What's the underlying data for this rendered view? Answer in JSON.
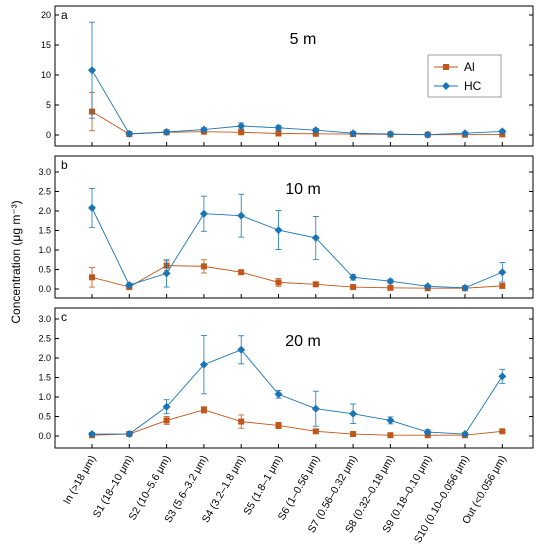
{
  "chart_data": {
    "type": "line",
    "ylabel": "Concentration (μg m⁻³)",
    "categories": [
      "In (>18 μm)",
      "S1 (18–10 μm)",
      "S2 (10–5.6 μm)",
      "S3 (5.6–3.2 μm)",
      "S4 (3.2–1.8 μm)",
      "S5 (1.8–1 μm)",
      "S6 (1–0.56 μm)",
      "S7 (0.56–0.32 μm)",
      "S8 (0.32–0.18 μm)",
      "S9 (0.18–0.10 μm)",
      "S10 (0.10–0.056 μm)",
      "Out (<0.056 μm)"
    ],
    "legend": [
      {
        "name": "Al",
        "color": "#c0561a",
        "marker": "square"
      },
      {
        "name": "HC",
        "color": "#1b75b5",
        "marker": "diamond"
      }
    ],
    "panels": [
      {
        "letter": "a",
        "title": "5 m",
        "ylim": [
          0,
          20
        ],
        "yticks": [
          0,
          5,
          10,
          15,
          20
        ],
        "ytick_labels": [
          "0",
          "5",
          "10",
          "15",
          "20"
        ],
        "series": [
          {
            "name": "Al",
            "values": [
              3.9,
              0.15,
              0.45,
              0.55,
              0.45,
              0.25,
              0.2,
              0.15,
              0.1,
              0.05,
              0.05,
              0.1
            ],
            "errors": [
              3.2,
              0.05,
              0.15,
              0.2,
              0.15,
              0.1,
              0.1,
              0.05,
              0.05,
              0.02,
              0.02,
              0.05
            ]
          },
          {
            "name": "HC",
            "values": [
              10.8,
              0.2,
              0.5,
              0.9,
              1.5,
              1.2,
              0.8,
              0.3,
              0.15,
              0.05,
              0.3,
              0.6
            ],
            "errors": [
              8.0,
              0.1,
              0.2,
              0.3,
              0.5,
              0.4,
              0.3,
              0.1,
              0.05,
              0.02,
              0.1,
              0.2
            ]
          }
        ]
      },
      {
        "letter": "b",
        "title": "10 m",
        "ylim": [
          0,
          3.0
        ],
        "yticks": [
          0,
          0.5,
          1.0,
          1.5,
          2.0,
          2.5,
          3.0
        ],
        "ytick_labels": [
          "0.0",
          "0.5",
          "1.0",
          "1.5",
          "2.0",
          "2.5",
          "3.0"
        ],
        "series": [
          {
            "name": "Al",
            "values": [
              0.3,
              0.05,
              0.6,
              0.58,
              0.43,
              0.17,
              0.12,
              0.05,
              0.03,
              0.02,
              0.02,
              0.08
            ],
            "errors": [
              0.25,
              0.02,
              0.12,
              0.17,
              0.06,
              0.1,
              0.04,
              0.02,
              0.01,
              0.01,
              0.01,
              0.06
            ]
          },
          {
            "name": "HC",
            "values": [
              2.08,
              0.1,
              0.4,
              1.93,
              1.88,
              1.51,
              1.31,
              0.3,
              0.2,
              0.07,
              0.03,
              0.43
            ],
            "errors": [
              0.5,
              0.05,
              0.35,
              0.45,
              0.55,
              0.5,
              0.55,
              0.07,
              0.05,
              0.03,
              0.02,
              0.25
            ]
          }
        ]
      },
      {
        "letter": "c",
        "title": "20 m",
        "ylim": [
          0,
          3.0
        ],
        "yticks": [
          0,
          0.5,
          1.0,
          1.5,
          2.0,
          2.5,
          3.0
        ],
        "ytick_labels": [
          "0.0",
          "0.5",
          "1.0",
          "1.5",
          "2.0",
          "2.5",
          "3.0"
        ],
        "series": [
          {
            "name": "Al",
            "values": [
              0.02,
              0.05,
              0.4,
              0.67,
              0.37,
              0.27,
              0.12,
              0.05,
              0.02,
              0.02,
              0.02,
              0.12
            ],
            "errors": [
              0.01,
              0.02,
              0.1,
              0.08,
              0.17,
              0.08,
              0.04,
              0.02,
              0.01,
              0.01,
              0.01,
              0.03
            ]
          },
          {
            "name": "HC",
            "values": [
              0.05,
              0.05,
              0.75,
              1.83,
              2.21,
              1.07,
              0.7,
              0.57,
              0.4,
              0.1,
              0.05,
              1.53
            ],
            "errors": [
              0.04,
              0.02,
              0.18,
              0.75,
              0.36,
              0.1,
              0.45,
              0.25,
              0.09,
              0.06,
              0.03,
              0.18
            ]
          }
        ]
      }
    ]
  }
}
